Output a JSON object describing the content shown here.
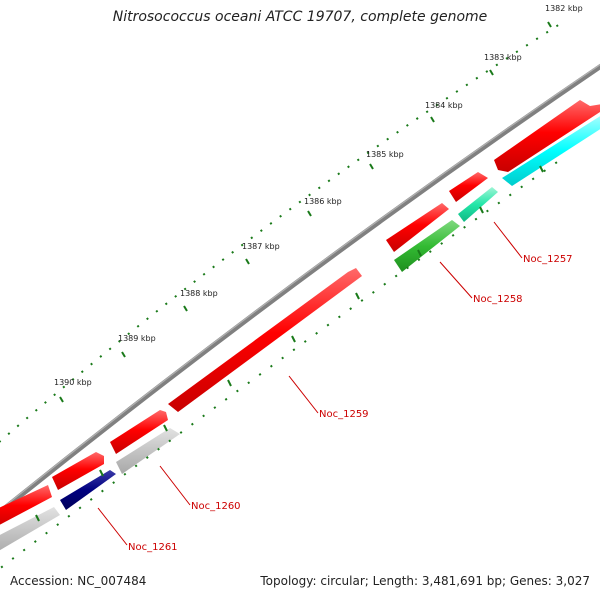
{
  "title": "Nitrosococcus oceani ATCC 19707, complete genome",
  "accession": "Accession: NC_007484",
  "summary": "Topology: circular; Length: 3,481,691 bp; Genes: 3,027",
  "colors": {
    "backbone": "#808080",
    "forward_cds": "#ff0000",
    "reverse_cds": "#c8c8c8",
    "navy_feature": "#000080",
    "cyan_feature": "#00ffff",
    "aqua_feature": "#00e0a0",
    "green_feature": "#2eb82e",
    "tick": "#1a7a1a",
    "label": "#cc0000"
  },
  "kbp_ticks": [
    "1382 kbp",
    "1383 kbp",
    "1384 kbp",
    "1385 kbp",
    "1386 kbp",
    "1387 kbp",
    "1388 kbp",
    "1389 kbp",
    "1390 kbp"
  ],
  "gene_labels": [
    "Noc_1257",
    "Noc_1258",
    "Noc_1259",
    "Noc_1260",
    "Noc_1261"
  ]
}
